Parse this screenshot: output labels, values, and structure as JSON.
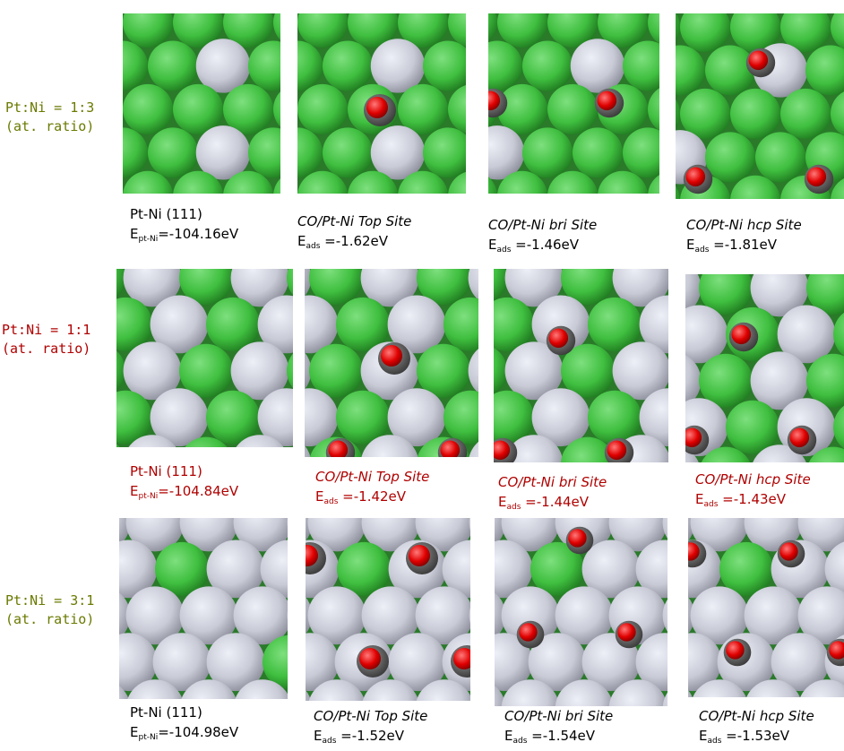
{
  "colors": {
    "row1_label": "#6b7a00",
    "row2_label": "#b00000",
    "row3_label": "#6b7a00",
    "row1_caption": "#000000",
    "row2_caption": "#b00000",
    "row3_caption": "#000000",
    "ni_atom": "#3fbf3f",
    "pt_atom": "#c8cad6",
    "oxygen": "#e00000",
    "carbon": "#5a5a5a"
  },
  "rows": [
    {
      "label_line1": "Pt:Ni = 1:3",
      "label_line2": "(at. ratio)",
      "captions": [
        {
          "title": "Pt-Ni (111)",
          "energy_symbol": "E",
          "energy_sub": "pt-Ni",
          "energy_value": "=-104.16eV"
        },
        {
          "title": "CO/Pt-Ni Top Site",
          "energy_symbol": "E",
          "energy_sub": "ads",
          "energy_value": " =-1.62eV"
        },
        {
          "title": "CO/Pt-Ni bri Site",
          "energy_symbol": "E",
          "energy_sub": "ads",
          "energy_value": " =-1.46eV"
        },
        {
          "title": "CO/Pt-Ni hcp Site",
          "energy_symbol": "E",
          "energy_sub": "ads",
          "energy_value": " =-1.81eV"
        }
      ]
    },
    {
      "label_line1": "Pt:Ni = 1:1",
      "label_line2": "(at. ratio)",
      "captions": [
        {
          "title": "Pt-Ni (111)",
          "energy_symbol": "E",
          "energy_sub": "pt-Ni",
          "energy_value": "=-104.84eV"
        },
        {
          "title": "CO/Pt-Ni Top Site",
          "energy_symbol": "E",
          "energy_sub": "ads",
          "energy_value": " =-1.42eV"
        },
        {
          "title": "CO/Pt-Ni bri Site",
          "energy_symbol": "E",
          "energy_sub": "ads",
          "energy_value": " =-1.44eV"
        },
        {
          "title": "CO/Pt-Ni hcp Site",
          "energy_symbol": "E",
          "energy_sub": "ads",
          "energy_value": " =-1.43eV"
        }
      ]
    },
    {
      "label_line1": "Pt:Ni = 3:1",
      "label_line2": "(at. ratio)",
      "captions": [
        {
          "title": "Pt-Ni (111)",
          "energy_symbol": "E",
          "energy_sub": "pt-Ni",
          "energy_value": "=-104.98eV"
        },
        {
          "title": "CO/Pt-Ni Top Site",
          "energy_symbol": "E",
          "energy_sub": "ads",
          "energy_value": " =-1.52eV"
        },
        {
          "title": "CO/Pt-Ni bri Site",
          "energy_symbol": "E",
          "energy_sub": "ads",
          "energy_value": " =-1.54eV"
        },
        {
          "title": "CO/Pt-Ni hcp Site",
          "energy_symbol": "E",
          "energy_sub": "ads",
          "energy_value": " =-1.53eV"
        }
      ]
    }
  ]
}
